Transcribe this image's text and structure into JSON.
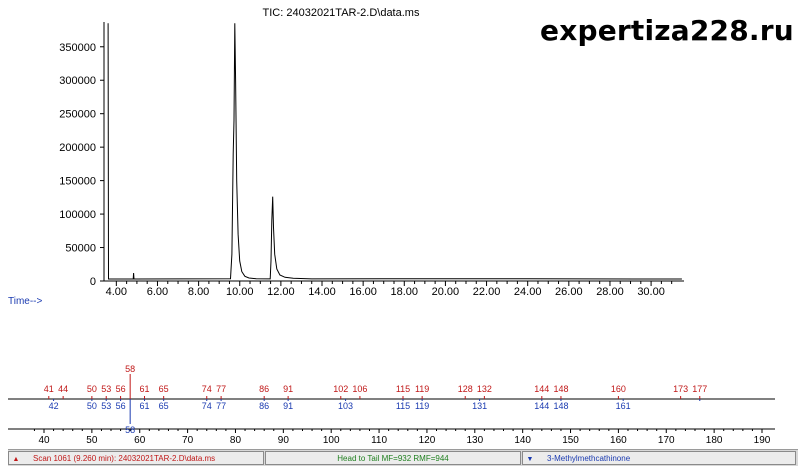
{
  "watermark": "expertiza228.ru",
  "chart_data": [
    {
      "type": "line",
      "title": "TIC: 24032021TAR-2.D\\data.ms",
      "xlabel": "Time-->",
      "ylabel": "",
      "xlim": [
        3.4,
        31.6
      ],
      "ylim": [
        0,
        390000
      ],
      "x_ticks": [
        4,
        6,
        8,
        10,
        12,
        14,
        16,
        18,
        20,
        22,
        24,
        26,
        28,
        30
      ],
      "x_tick_labels": [
        "4.00",
        "6.00",
        "8.00",
        "10.00",
        "12.00",
        "14.00",
        "16.00",
        "18.00",
        "20.00",
        "22.00",
        "24.00",
        "26.00",
        "28.00",
        "30.00"
      ],
      "y_ticks": [
        0,
        50000,
        100000,
        150000,
        200000,
        250000,
        300000,
        350000
      ],
      "y_tick_labels": [
        "0",
        "50000",
        "100000",
        "150000",
        "200000",
        "250000",
        "300000",
        "350000"
      ],
      "baseline": 3000,
      "series": [
        {
          "points": [
            [
              3.6,
              385000
            ],
            [
              3.62,
              3000
            ],
            [
              4.82,
              3000
            ],
            [
              4.84,
              12000
            ],
            [
              4.86,
              3000
            ],
            [
              9.55,
              3500
            ],
            [
              9.62,
              40000
            ],
            [
              9.68,
              190000
            ],
            [
              9.72,
              240000
            ],
            [
              9.76,
              385000
            ],
            [
              9.8,
              300000
            ],
            [
              9.85,
              150000
            ],
            [
              9.92,
              70000
            ],
            [
              10.0,
              30000
            ],
            [
              10.1,
              14000
            ],
            [
              10.25,
              7000
            ],
            [
              10.45,
              4500
            ],
            [
              10.8,
              3500
            ],
            [
              11.48,
              3200
            ],
            [
              11.52,
              30000
            ],
            [
              11.56,
              90000
            ],
            [
              11.6,
              126000
            ],
            [
              11.64,
              80000
            ],
            [
              11.7,
              40000
            ],
            [
              11.8,
              18000
            ],
            [
              11.95,
              9000
            ],
            [
              12.2,
              5500
            ],
            [
              12.6,
              4000
            ],
            [
              13.5,
              3200
            ],
            [
              17.0,
              3500
            ],
            [
              24.0,
              3300
            ],
            [
              31.5,
              3000
            ]
          ]
        }
      ]
    },
    {
      "type": "bar",
      "title": "",
      "xlabel": "",
      "ylabel": "",
      "xlim": [
        36,
        192
      ],
      "x_ticks": [
        40,
        50,
        60,
        70,
        80,
        90,
        100,
        110,
        120,
        130,
        140,
        150,
        160,
        170,
        180,
        190
      ],
      "x_tick_labels": [
        "40",
        "50",
        "60",
        "70",
        "80",
        "90",
        "100",
        "110",
        "120",
        "130",
        "140",
        "150",
        "160",
        "170",
        "180",
        "190"
      ],
      "series": [
        {
          "name": "Scan 1061 (9.260 min): 24032021TAR-2.D\\data.ms",
          "color": "#c01818",
          "peaks": [
            [
              41,
              3
            ],
            [
              44,
              2
            ],
            [
              50,
              3
            ],
            [
              53,
              3
            ],
            [
              56,
              6
            ],
            [
              58,
              100
            ],
            [
              61,
              2
            ],
            [
              65,
              5
            ],
            [
              74,
              3
            ],
            [
              77,
              3
            ],
            [
              86,
              3
            ],
            [
              91,
              8
            ],
            [
              102,
              12
            ],
            [
              106,
              2
            ],
            [
              115,
              3
            ],
            [
              119,
              3
            ],
            [
              128,
              2
            ],
            [
              132,
              2
            ],
            [
              144,
              2
            ],
            [
              148,
              2
            ],
            [
              160,
              2
            ],
            [
              173,
              2
            ],
            [
              177,
              2
            ]
          ],
          "labels": [
            "41",
            "44",
            "50",
            "53",
            "56",
            "58",
            "61",
            "65",
            "74",
            "77",
            "86",
            "91",
            "102",
            "106",
            "115",
            "119",
            "128",
            "132",
            "144",
            "148",
            "160",
            "173",
            "177"
          ]
        },
        {
          "name": "3-Methylmethcathinone",
          "color": "#1a3ab0",
          "peaks": [
            [
              42,
              2
            ],
            [
              50,
              2
            ],
            [
              53,
              2
            ],
            [
              56,
              7
            ],
            [
              58,
              100
            ],
            [
              61,
              2
            ],
            [
              65,
              2
            ],
            [
              74,
              2
            ],
            [
              77,
              2
            ],
            [
              86,
              3
            ],
            [
              91,
              7
            ],
            [
              103,
              2
            ],
            [
              115,
              3
            ],
            [
              119,
              2
            ],
            [
              131,
              2
            ],
            [
              144,
              2
            ],
            [
              148,
              2
            ],
            [
              161,
              2
            ],
            [
              177,
              2
            ]
          ],
          "labels": [
            "42",
            "50",
            "53",
            "56",
            "58",
            "61",
            "65",
            "74",
            "77",
            "86",
            "91",
            "103",
            "115",
            "119",
            "131",
            "144",
            "148",
            "161",
            ""
          ]
        }
      ]
    }
  ],
  "status_bar": {
    "left_text": "Scan 1061 (9.260 min): 24032021TAR-2.D\\data.ms",
    "mid_text": "Head to Tail MF=932 RMF=944",
    "right_text": "3-Methylmethcathinone",
    "left_color": "#c01818",
    "mid_color": "#208020",
    "right_color": "#1a3ab0"
  }
}
